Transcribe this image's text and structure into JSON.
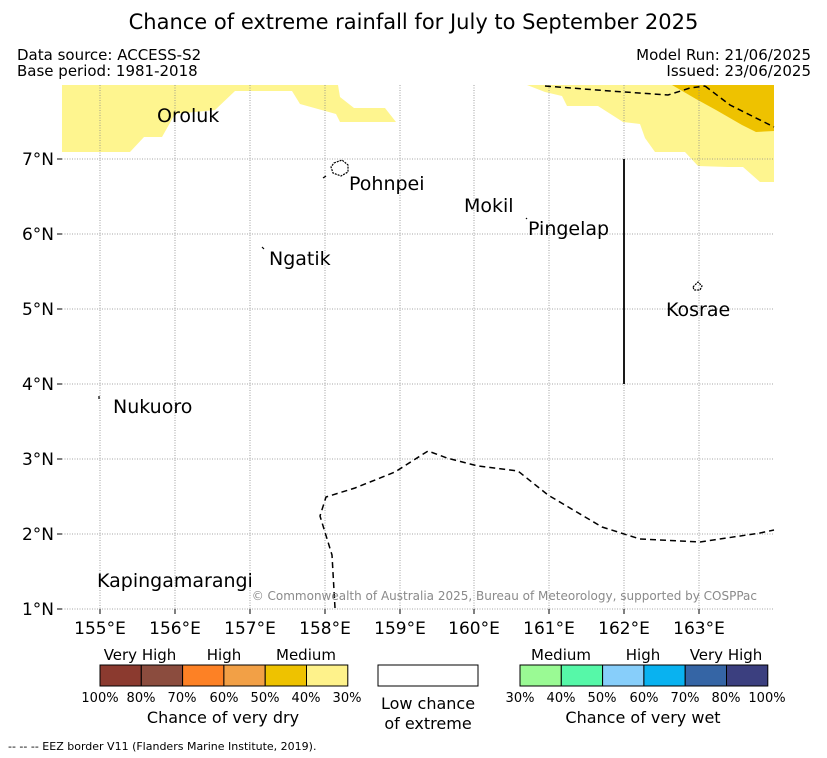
{
  "header": {
    "title": "Chance of extreme rainfall for July to September 2025",
    "data_source": "Data source: ACCESS-S2",
    "base_period": "Base period: 1981-2018",
    "model_run": "Model Run: 21/06/2025",
    "issued": "Issued: 23/06/2025"
  },
  "map": {
    "lat_ticks": [
      "7°N",
      "6°N",
      "5°N",
      "4°N",
      "3°N",
      "2°N",
      "1°N"
    ],
    "lon_ticks": [
      "155°E",
      "156°E",
      "157°E",
      "158°E",
      "159°E",
      "160°E",
      "161°E",
      "162°E",
      "163°E"
    ],
    "places": [
      "Oroluk",
      "Pohnpei",
      "Mokil",
      "Pingelap",
      "Ngatik",
      "Kosrae",
      "Nukuoro",
      "Kapingamarangi"
    ],
    "copyright": "© Commonwealth of Australia 2025, Bureau of Meteorology, supported by COSPPac"
  },
  "legend": {
    "dry": {
      "headers": [
        "Very High",
        "High",
        "Medium"
      ],
      "colors": [
        "#8b3a2f",
        "#8b4c3e",
        "#fd8125",
        "#f2a046",
        "#eec200",
        "#fef28b"
      ],
      "ticks": [
        "100%",
        "80%",
        "70%",
        "60%",
        "50%",
        "40%",
        "30%"
      ],
      "label": "Chance of very dry"
    },
    "low": {
      "line1": "Low chance",
      "line2": "of extreme"
    },
    "wet": {
      "headers": [
        "Medium",
        "High",
        "Very High"
      ],
      "colors": [
        "#9afa94",
        "#56f8a8",
        "#87cefa",
        "#09b2f0",
        "#3565a5",
        "#3b3f7f"
      ],
      "ticks": [
        "30%",
        "40%",
        "50%",
        "60%",
        "70%",
        "80%",
        "100%"
      ],
      "label": "Chance of very wet"
    }
  },
  "footer": {
    "eez_note": "--  --  -- EEZ border V11 (Flanders Marine Institute, 2019)."
  }
}
